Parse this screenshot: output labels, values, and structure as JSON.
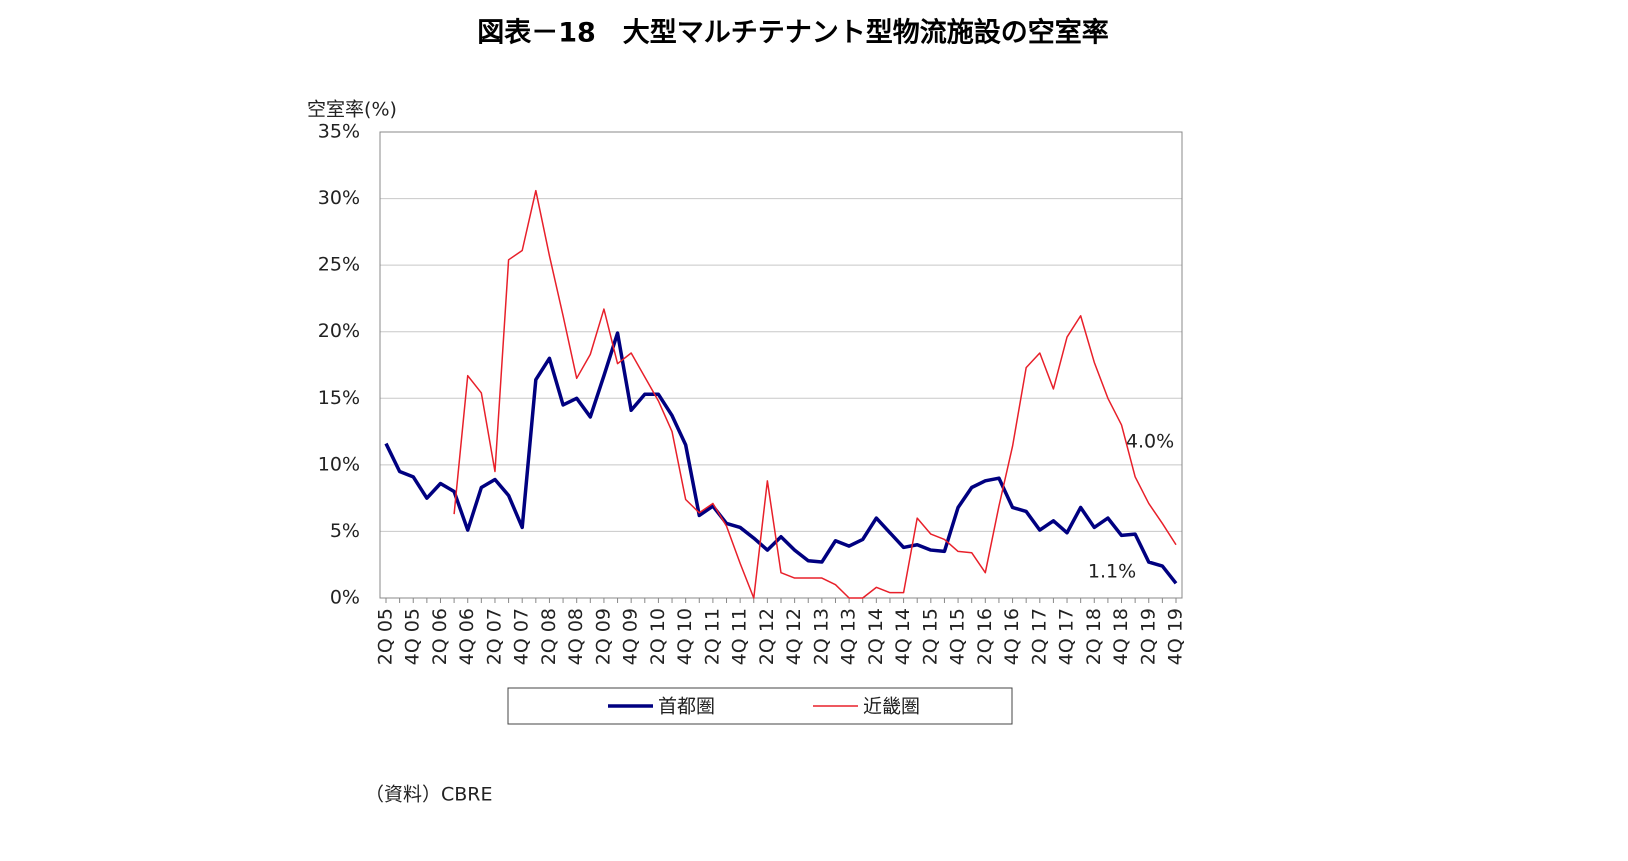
{
  "chart_data": {
    "type": "line",
    "title": "図表－18　大型マルチテナント型物流施設の空室率",
    "y_axis_label": "空室率(%)",
    "source": "（資料）CBRE",
    "annotations": [
      "4.0%",
      "1.1%"
    ],
    "categories": [
      "2Q 05",
      null,
      "4Q 05",
      null,
      "2Q 06",
      null,
      "4Q 06",
      null,
      "2Q 07",
      null,
      "4Q 07",
      null,
      "2Q 08",
      null,
      "4Q 08",
      null,
      "2Q 09",
      null,
      "4Q 09",
      null,
      "2Q 10",
      null,
      "4Q 10",
      null,
      "2Q 11",
      null,
      "4Q 11",
      null,
      "2Q 12",
      null,
      "4Q 12",
      null,
      "2Q 13",
      null,
      "4Q 13",
      null,
      "2Q 14",
      null,
      "4Q 14",
      null,
      "2Q 15",
      null,
      "4Q 15",
      null,
      "2Q 16",
      null,
      "4Q 16",
      null,
      "2Q 17",
      null,
      "4Q 17",
      null,
      "2Q 18",
      null,
      "4Q 18",
      null,
      "2Q 19",
      null,
      "4Q 19"
    ],
    "series": [
      {
        "name": "首都圏",
        "color": "#000080",
        "width": 3.5,
        "values": [
          11.6,
          9.5,
          9.1,
          7.5,
          8.6,
          8.0,
          5.1,
          8.3,
          8.9,
          7.7,
          5.3,
          16.4,
          18.0,
          14.5,
          15.0,
          13.6,
          16.7,
          19.9,
          14.1,
          15.3,
          15.3,
          13.7,
          11.5,
          6.2,
          6.9,
          5.6,
          5.3,
          4.5,
          3.6,
          4.6,
          3.6,
          2.8,
          2.7,
          4.3,
          3.9,
          4.4,
          6.0,
          4.9,
          3.8,
          4.0,
          3.6,
          3.5,
          6.8,
          8.3,
          8.8,
          9.0,
          6.8,
          6.5,
          5.1,
          5.8,
          4.9,
          6.8,
          5.3,
          6.0,
          4.7,
          4.8,
          2.7,
          2.4,
          1.1
        ]
      },
      {
        "name": "近畿圏",
        "color": "#e8202a",
        "width": 1.5,
        "values": [
          null,
          null,
          null,
          null,
          null,
          6.3,
          16.7,
          15.4,
          9.5,
          25.4,
          26.1,
          30.6,
          25.7,
          21.2,
          16.5,
          18.3,
          21.7,
          17.6,
          18.4,
          16.6,
          14.8,
          12.5,
          7.4,
          6.4,
          7.1,
          5.4,
          2.6,
          0.0,
          8.8,
          1.9,
          1.5,
          1.5,
          1.5,
          1.0,
          0.0,
          0.0,
          0.8,
          0.4,
          0.4,
          6.0,
          4.8,
          4.4,
          3.5,
          3.4,
          1.9,
          6.9,
          11.4,
          17.3,
          18.4,
          15.7,
          19.6,
          21.2,
          17.7,
          15.0,
          13.0,
          9.1,
          7.1,
          5.6,
          4.0
        ]
      }
    ],
    "ylim": [
      0,
      35
    ],
    "yticks": [
      {
        "value": 0,
        "label": "0%"
      },
      {
        "value": 5,
        "label": "5%"
      },
      {
        "value": 10,
        "label": "10%"
      },
      {
        "value": 15,
        "label": "15%"
      },
      {
        "value": 20,
        "label": "20%"
      },
      {
        "value": 25,
        "label": "25%"
      },
      {
        "value": 30,
        "label": "30%"
      },
      {
        "value": 35,
        "label": "35%"
      }
    ],
    "grid": true
  }
}
